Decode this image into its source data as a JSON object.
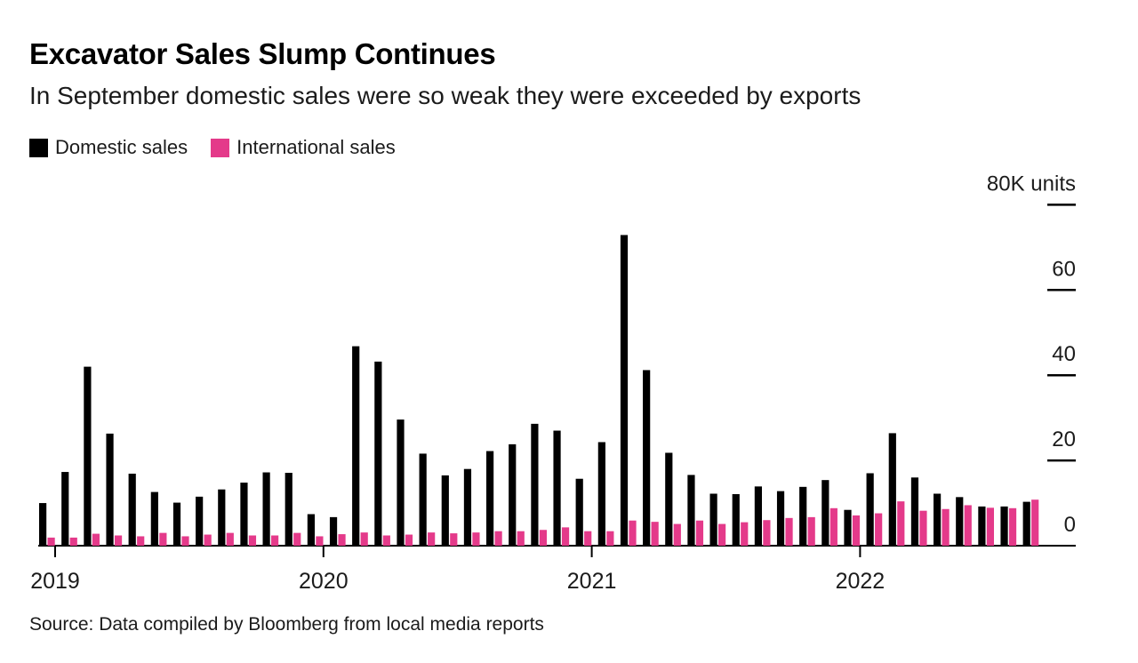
{
  "header": {
    "title": "Excavator Sales Slump Continues",
    "subtitle": "In September domestic sales were so weak they were exceeded by exports"
  },
  "legend": [
    {
      "label": "Domestic sales",
      "color": "#000000"
    },
    {
      "label": "International sales",
      "color": "#E43A8A"
    }
  ],
  "source": "Source: Data compiled by Bloomberg from local media reports",
  "chart_data": {
    "type": "bar",
    "title": "Excavator Sales Slump Continues",
    "subtitle": "In September domestic sales were so weak they were exceeded by exports",
    "unit_label": "80K units",
    "ylabel": "K units",
    "ylim": [
      0,
      80
    ],
    "grid": false,
    "legend_position": "top-left",
    "y_ticks": [
      0,
      20,
      40,
      60,
      80
    ],
    "y_tick_labels": [
      "0",
      "20",
      "40",
      "60",
      "80K units"
    ],
    "x_year_ticks": [
      "2019",
      "2020",
      "2021",
      "2022"
    ],
    "categories": [
      "Jan 2019",
      "Feb 2019",
      "Mar 2019",
      "Apr 2019",
      "May 2019",
      "Jun 2019",
      "Jul 2019",
      "Aug 2019",
      "Sep 2019",
      "Oct 2019",
      "Nov 2019",
      "Dec 2019",
      "Jan 2020",
      "Feb 2020",
      "Mar 2020",
      "Apr 2020",
      "May 2020",
      "Jun 2020",
      "Jul 2020",
      "Aug 2020",
      "Sep 2020",
      "Oct 2020",
      "Nov 2020",
      "Dec 2020",
      "Jan 2021",
      "Feb 2021",
      "Mar 2021",
      "Apr 2021",
      "May 2021",
      "Jun 2021",
      "Jul 2021",
      "Aug 2021",
      "Sep 2021",
      "Oct 2021",
      "Nov 2021",
      "Dec 2021",
      "Jan 2022",
      "Feb 2022",
      "Mar 2022",
      "Apr 2022",
      "May 2022",
      "Jun 2022",
      "Jul 2022",
      "Aug 2022",
      "Sep 2022"
    ],
    "series": [
      {
        "name": "Domestic sales",
        "color": "#000000",
        "values": [
          10.0,
          17.3,
          42.0,
          26.3,
          16.9,
          12.6,
          10.1,
          11.5,
          13.2,
          14.8,
          17.2,
          17.1,
          7.4,
          6.7,
          46.8,
          43.2,
          29.6,
          21.6,
          16.5,
          18.0,
          22.2,
          23.8,
          28.6,
          27.0,
          15.7,
          24.3,
          72.9,
          41.2,
          21.8,
          16.6,
          12.2,
          12.1,
          13.9,
          12.8,
          13.8,
          15.4,
          8.4,
          17.0,
          26.4,
          16.0,
          12.2,
          11.4,
          9.2,
          9.2,
          10.3
        ]
      },
      {
        "name": "International sales",
        "color": "#E43A8A",
        "values": [
          1.9,
          1.9,
          2.8,
          2.4,
          2.2,
          3.0,
          2.2,
          2.6,
          3.0,
          2.4,
          2.4,
          3.0,
          2.2,
          2.7,
          3.1,
          2.4,
          2.6,
          3.1,
          2.9,
          3.1,
          3.4,
          3.4,
          3.7,
          4.3,
          3.4,
          3.4,
          5.9,
          5.6,
          5.1,
          5.9,
          5.1,
          5.5,
          6.0,
          6.5,
          6.7,
          8.8,
          7.1,
          7.6,
          10.4,
          8.2,
          8.6,
          9.5,
          8.9,
          8.8,
          10.8
        ]
      }
    ]
  }
}
